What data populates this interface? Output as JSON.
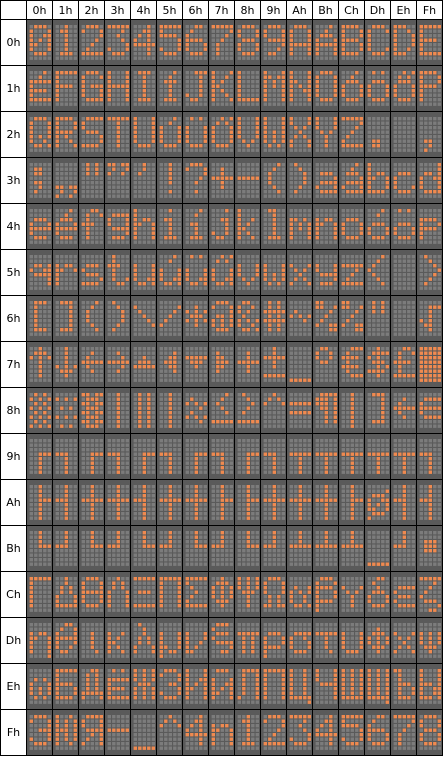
{
  "columns": [
    "0h",
    "1h",
    "2h",
    "3h",
    "4h",
    "5h",
    "6h",
    "7h",
    "8h",
    "9h",
    "Ah",
    "Bh",
    "Ch",
    "Dh",
    "Eh",
    "Fh"
  ],
  "rows": [
    "0h",
    "1h",
    "2h",
    "3h",
    "4h",
    "5h",
    "6h",
    "7h",
    "8h",
    "9h",
    "Ah",
    "Bh",
    "Ch",
    "Dh",
    "Eh",
    "Fh"
  ],
  "colors": {
    "lit_dot": "#f08a50",
    "unlit_dot": "#7c7c7c",
    "cell_bg": "#5a5a5a",
    "border": "#000000"
  },
  "matrix": {
    "dot_columns": 5,
    "dot_rows": 8
  },
  "glyph_chars": [
    [
      "0",
      "1",
      "2",
      "3",
      "4",
      "5",
      "6",
      "7",
      "8",
      "9",
      "A",
      "Á",
      "B",
      "C",
      "D",
      "E"
    ],
    [
      "É",
      "F",
      "G",
      "H",
      "I",
      "Í",
      "J",
      "K",
      "L",
      "M",
      "N",
      "O",
      "Ó",
      "Ö",
      "Ő",
      "P"
    ],
    [
      "Q",
      "R",
      "S",
      "T",
      "U",
      "Ú",
      "Ü",
      "Ű",
      "V",
      "W",
      "X",
      "Y",
      "Z",
      ".",
      " ",
      ","
    ],
    [
      ";",
      "„",
      "\"",
      "”",
      "'",
      "!",
      "?",
      "+",
      "-",
      "(",
      ")",
      "a",
      "á",
      "b",
      "c",
      "d"
    ],
    [
      "e",
      "é",
      "f",
      "g",
      "h",
      "i",
      "í",
      "j",
      "k",
      "l",
      "m",
      "n",
      "o",
      "ó",
      "ö",
      "p"
    ],
    [
      "q",
      "r",
      "s",
      "t",
      "u",
      "ú",
      "ü",
      "ű",
      "v",
      "w",
      "x",
      "y",
      "z",
      "<",
      " ",
      ">"
    ],
    [
      "[",
      "]",
      "(",
      ")",
      "\\",
      "/",
      "*",
      "@",
      "&",
      "#",
      "~",
      "%",
      "%",
      "\"",
      " ",
      "√"
    ],
    [
      "↑",
      "↓",
      "←",
      "→",
      "▲",
      "◄",
      "▼",
      "►",
      "+",
      "±",
      "_",
      "°",
      "€",
      "$",
      "£",
      "█"
    ],
    [
      "▒",
      "░",
      "▓",
      "|",
      "‖",
      "|",
      "≈",
      "≤",
      "≥",
      "^",
      "=",
      "¶",
      "|",
      "]",
      "←",
      "∈"
    ],
    [
      "┌",
      "┐",
      "┌",
      "┐",
      "┌",
      "┐",
      "┌",
      "┐",
      "┌",
      "┐",
      "┬",
      "┬",
      "┬",
      "┬",
      "┬",
      "┐"
    ],
    [
      "├",
      "┤",
      "┼",
      "┼",
      "┤",
      "┼",
      "┼",
      "├",
      "├",
      "┼",
      "┼",
      "┼",
      "├",
      "ø",
      "┤",
      "┤"
    ],
    [
      "└",
      "┘",
      "└",
      "┘",
      "└",
      "┘",
      "└",
      "┘",
      "└",
      "┘",
      "┴",
      "┴",
      "┴",
      "_",
      "┘",
      "■"
    ],
    [
      "Γ",
      "Δ",
      "Θ",
      "Λ",
      "Ξ",
      "Π",
      "Σ",
      "Φ",
      "Ψ",
      "Ω",
      "α",
      "β",
      "γ",
      "δ",
      "ε",
      "ζ"
    ],
    [
      "η",
      "θ",
      "ι",
      "κ",
      "λ",
      "μ",
      "ν",
      "ξ",
      "π",
      "ρ",
      "σ",
      "τ",
      "υ",
      "φ",
      "χ",
      "ψ"
    ],
    [
      "ω",
      "Б",
      "Д",
      "Ё",
      "Ж",
      "З",
      "И",
      "Й",
      "Л",
      "П",
      "Ц",
      "Ч",
      "Ш",
      "Щ",
      "Ъ",
      "Ы"
    ],
    [
      "Э",
      "Ю",
      "Я",
      "-",
      "_",
      "^",
      "4",
      "n",
      "1",
      "2",
      "3",
      "4",
      "5",
      "6",
      "7",
      "8"
    ]
  ]
}
